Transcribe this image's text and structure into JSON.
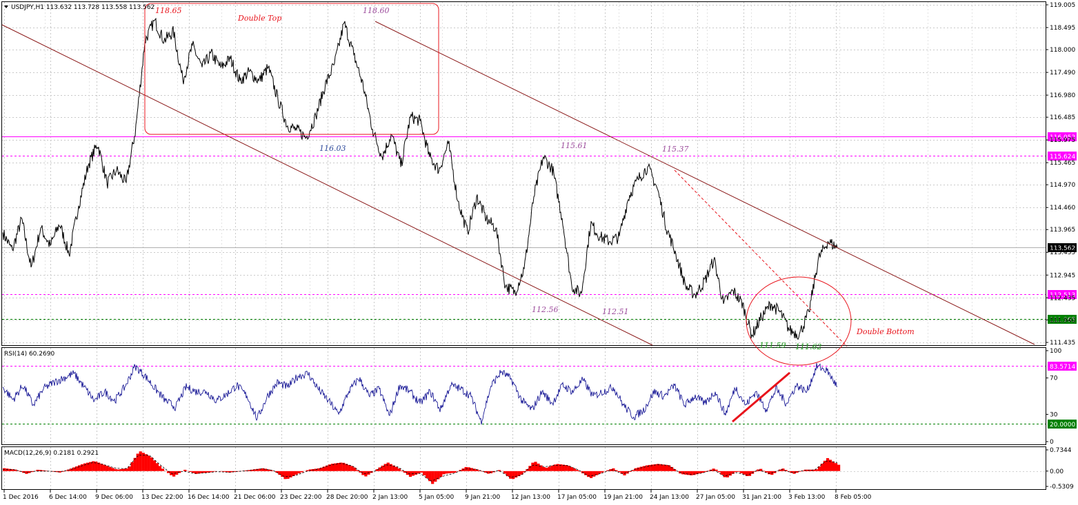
{
  "main_header": "USDJPY,H1  113.632 113.728 113.558 113.562",
  "rsi_header": "RSI(14) 60.2690",
  "macd_header": "MACD(12,26,9) 0.2181 0.2921",
  "colors": {
    "price_line": "#000000",
    "grid": "#c8c8c8",
    "trendline": "#8b1a1a",
    "magenta": "#ff00ff",
    "green_level": "#008000",
    "annotation_red": "#e8141c",
    "annotation_purple": "#9b4a9b",
    "annotation_blue": "#2e4a9b",
    "annotation_green": "#1a9b1a",
    "rsi_line": "#00008b",
    "macd_hist": "#ff0000"
  },
  "chart_data": [
    {
      "type": "line",
      "pane": "price",
      "symbol": "USDJPY",
      "timeframe": "H1",
      "ylim": [
        111.435,
        119.005
      ],
      "y_ticks": [
        "119.005",
        "118.495",
        "118.000",
        "117.490",
        "116.980",
        "116.485",
        "115.975",
        "115.465",
        "114.970",
        "114.460",
        "113.965",
        "113.455",
        "112.945",
        "112.435",
        "111.940",
        "111.435"
      ],
      "x_ticks": [
        "1 Dec 2016",
        "6 Dec 14:00",
        "9 Dec 06:00",
        "13 Dec 22:00",
        "16 Dec 14:00",
        "21 Dec 06:00",
        "23 Dec 22:00",
        "28 Dec 20:00",
        "2 Jan 13:00",
        "5 Jan 05:00",
        "9 Jan 21:00",
        "12 Jan 13:00",
        "17 Jan 05:00",
        "19 Jan 21:00",
        "24 Jan 13:00",
        "27 Jan 05:00",
        "31 Jan 21:00",
        "3 Feb 13:00",
        "8 Feb 05:00"
      ],
      "series": [
        {
          "values": [
            113.9,
            113.5,
            114.2,
            113.1,
            114.0,
            113.6,
            114.1,
            113.4,
            114.5,
            115.4,
            115.9,
            115.0,
            115.3,
            115.0,
            116.2,
            118.2,
            118.65,
            118.2,
            118.4,
            117.3,
            118.1,
            117.6,
            117.9,
            117.6,
            117.8,
            117.3,
            117.5,
            117.3,
            117.6,
            116.9,
            116.3,
            116.2,
            116.03,
            116.5,
            117.2,
            117.7,
            118.6,
            117.9,
            117.2,
            116.2,
            115.6,
            116.1,
            115.4,
            116.5,
            116.4,
            115.6,
            115.3,
            115.9,
            114.6,
            113.9,
            114.7,
            114.2,
            114.0,
            112.7,
            112.56,
            113.1,
            114.7,
            115.6,
            115.3,
            114.2,
            112.7,
            112.51,
            114.1,
            113.8,
            113.7,
            113.8,
            114.7,
            115.1,
            115.37,
            114.9,
            114.0,
            113.4,
            112.7,
            112.5,
            112.8,
            113.3,
            112.3,
            112.6,
            112.3,
            111.59,
            112.0,
            112.3,
            112.1,
            111.7,
            111.62,
            112.1,
            113.3,
            113.7,
            113.562
          ]
        }
      ],
      "levels": [
        {
          "label": "116.052",
          "style": "solid",
          "color": "#ff00ff"
        },
        {
          "label": "115.624",
          "style": "dashed",
          "color": "#ff00ff"
        },
        {
          "label": "113.562",
          "style": "solid",
          "color": "#000000"
        },
        {
          "label": "112.513",
          "style": "dashed",
          "color": "#ff00ff"
        },
        {
          "label": "111.965",
          "style": "dashed",
          "color": "#008000"
        }
      ],
      "annotations": [
        {
          "text": "118.65",
          "color": "#e8141c"
        },
        {
          "text": "Double Top",
          "color": "#e8141c"
        },
        {
          "text": "118.60",
          "color": "#9b4a9b"
        },
        {
          "text": "116.03",
          "color": "#2e4a9b"
        },
        {
          "text": "115.61",
          "color": "#9b4a9b"
        },
        {
          "text": "115.37",
          "color": "#9b4a9b"
        },
        {
          "text": "112.56",
          "color": "#9b4a9b"
        },
        {
          "text": "112.51",
          "color": "#9b4a9b"
        },
        {
          "text": "111.59",
          "color": "#1a9b1a"
        },
        {
          "text": "111.62",
          "color": "#1a9b1a"
        },
        {
          "text": "Double Bottom",
          "color": "#e8141c"
        }
      ]
    },
    {
      "type": "line",
      "pane": "rsi",
      "name": "RSI(14)",
      "ylim": [
        0,
        100
      ],
      "y_ticks": [
        "100",
        "70",
        "30",
        "0"
      ],
      "levels": [
        {
          "label": "83.5714",
          "color": "#ff00ff"
        },
        {
          "label": "20.0000",
          "color": "#008000"
        }
      ],
      "series": [
        {
          "name": "RSI(14)",
          "values": [
            60,
            46,
            62,
            40,
            58,
            65,
            70,
            75,
            60,
            45,
            55,
            45,
            60,
            83,
            72,
            58,
            45,
            38,
            60,
            55,
            55,
            45,
            52,
            62,
            50,
            25,
            50,
            65,
            60,
            72,
            75,
            58,
            45,
            30,
            55,
            70,
            50,
            58,
            28,
            62,
            55,
            42,
            55,
            35,
            62,
            58,
            50,
            22,
            62,
            77,
            68,
            45,
            35,
            55,
            42,
            62,
            55,
            68,
            50,
            55,
            60,
            40,
            27,
            35,
            55,
            50,
            62,
            40,
            50,
            42,
            55,
            30,
            60,
            40,
            55,
            35,
            58,
            42,
            62,
            55,
            83,
            78,
            60.269
          ]
        }
      ]
    },
    {
      "type": "bar",
      "pane": "macd",
      "name": "MACD(12,26,9)",
      "ylim": [
        -0.5309,
        0.7344
      ],
      "y_ticks": [
        "0.7344",
        "0.00",
        "-0.5309"
      ],
      "series": [
        {
          "name": "MACD",
          "values": [
            0.1,
            0.05,
            -0.1,
            0.05,
            0.0,
            -0.05,
            0.1,
            0.25,
            0.35,
            0.2,
            0.05,
            0.1,
            0.7,
            0.5,
            0.1,
            -0.2,
            0.05,
            -0.1,
            -0.05,
            0.0,
            -0.05,
            0.0,
            0.05,
            0.1,
            0.0,
            -0.3,
            -0.1,
            0.05,
            0.1,
            0.25,
            0.3,
            0.15,
            -0.2,
            0.05,
            0.3,
            0.1,
            -0.2,
            -0.05,
            -0.45,
            -0.1,
            -0.05,
            0.15,
            0.05,
            -0.1,
            0.05,
            -0.3,
            -0.1,
            0.35,
            0.1,
            0.25,
            0.2,
            0.0,
            -0.25,
            -0.05,
            0.1,
            -0.15,
            0.1,
            0.2,
            0.25,
            0.2,
            -0.1,
            -0.15,
            -0.05,
            0.1,
            -0.25,
            0.0,
            -0.2,
            0.1,
            -0.15,
            0.1,
            -0.1,
            0.05,
            0.05,
            0.45,
            0.218
          ]
        },
        {
          "name": "Signal",
          "values": [
            0.05,
            0.05,
            -0.05,
            0.0,
            0.0,
            -0.03,
            0.05,
            0.18,
            0.3,
            0.22,
            0.1,
            0.08,
            0.55,
            0.55,
            0.2,
            -0.1,
            0.0,
            -0.08,
            -0.06,
            -0.02,
            -0.04,
            -0.01,
            0.03,
            0.08,
            0.02,
            -0.2,
            -0.15,
            0.0,
            0.07,
            0.2,
            0.27,
            0.18,
            -0.1,
            0.0,
            0.22,
            0.15,
            -0.1,
            -0.08,
            -0.35,
            -0.18,
            -0.08,
            0.08,
            0.06,
            -0.06,
            0.02,
            -0.22,
            -0.14,
            0.22,
            0.15,
            0.2,
            0.2,
            0.05,
            -0.18,
            -0.09,
            0.05,
            -0.1,
            0.05,
            0.15,
            0.22,
            0.2,
            -0.05,
            -0.12,
            -0.07,
            0.05,
            -0.18,
            -0.04,
            -0.15,
            0.05,
            -0.1,
            0.06,
            -0.06,
            0.02,
            0.04,
            0.35,
            0.2921
          ]
        }
      ]
    }
  ]
}
